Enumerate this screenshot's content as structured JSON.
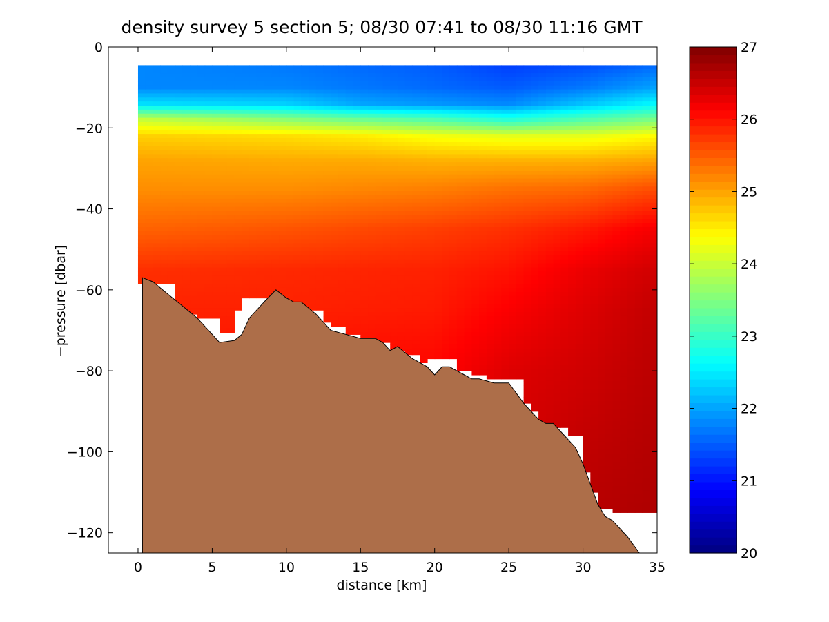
{
  "chart_data": {
    "type": "heatmap",
    "title": "density survey 5 section 5; 08/30 07:41 to 08/30 11:16 GMT",
    "xlabel": "distance [km]",
    "ylabel": "−pressure [dbar]",
    "xlim": [
      -2,
      35
    ],
    "ylim": [
      -125,
      0
    ],
    "x_ticks": [
      0,
      5,
      10,
      15,
      20,
      25,
      30,
      35
    ],
    "x_tick_labels": [
      "0",
      "5",
      "10",
      "15",
      "20",
      "25",
      "30",
      "35"
    ],
    "y_ticks": [
      0,
      -20,
      -40,
      -60,
      -80,
      -100,
      -120
    ],
    "y_tick_labels": [
      "0",
      "−20",
      "−40",
      "−60",
      "−80",
      "−100",
      "−120"
    ],
    "colorbar": {
      "colormap": "jet",
      "clim": [
        20,
        27
      ],
      "ticks": [
        20,
        21,
        22,
        23,
        24,
        25,
        26,
        27
      ],
      "tick_labels": [
        "20",
        "21",
        "22",
        "23",
        "24",
        "25",
        "26",
        "27"
      ]
    },
    "data_x_range": [
      0,
      35
    ],
    "surface_pressure": -4.5,
    "sounding_bottom_pressure": [
      [
        0,
        -58.5
      ],
      [
        2.5,
        -64
      ],
      [
        3,
        -66
      ],
      [
        4,
        -67
      ],
      [
        5.5,
        -70.5
      ],
      [
        6.5,
        -70.5
      ],
      [
        6.5,
        -65
      ],
      [
        7,
        -62
      ],
      [
        10,
        -62
      ],
      [
        10,
        -63
      ],
      [
        11,
        -63
      ],
      [
        11,
        -65
      ],
      [
        12.5,
        -68
      ],
      [
        13,
        -69
      ],
      [
        14,
        -71
      ],
      [
        15,
        -72
      ],
      [
        15.5,
        -72
      ],
      [
        16,
        -73
      ],
      [
        17,
        -73
      ],
      [
        17,
        -75
      ],
      [
        18,
        -76
      ],
      [
        19,
        -78
      ],
      [
        19.5,
        -78
      ],
      [
        19.5,
        -77
      ],
      [
        21.5,
        -77
      ],
      [
        21.5,
        -80
      ],
      [
        22.5,
        -81
      ],
      [
        23.5,
        -82
      ],
      [
        25,
        -82
      ],
      [
        26,
        -88
      ],
      [
        26.5,
        -90
      ],
      [
        27,
        -90
      ],
      [
        27,
        -93
      ],
      [
        28,
        -94
      ],
      [
        29,
        -96
      ],
      [
        30,
        -99
      ],
      [
        30,
        -105
      ],
      [
        30.5,
        -110
      ],
      [
        31,
        -114
      ],
      [
        32,
        -115
      ],
      [
        33,
        -115
      ],
      [
        35,
        -115
      ]
    ],
    "density_levels": [
      {
        "depth": -4.5,
        "values": [
          [
            0,
            21.8
          ],
          [
            10,
            21.7
          ],
          [
            20,
            21.5
          ],
          [
            25,
            21.3
          ],
          [
            30,
            21.4
          ],
          [
            35,
            21.6
          ]
        ]
      },
      {
        "depth": -10,
        "values": [
          [
            0,
            21.8
          ],
          [
            10,
            21.8
          ],
          [
            15,
            21.7
          ],
          [
            20,
            21.6
          ],
          [
            25,
            21.5
          ],
          [
            30,
            21.7
          ],
          [
            35,
            22.0
          ]
        ]
      },
      {
        "depth": -14,
        "values": [
          [
            0,
            22.4
          ],
          [
            10,
            22.3
          ],
          [
            15,
            22.0
          ],
          [
            20,
            21.9
          ],
          [
            25,
            21.8
          ],
          [
            30,
            22.2
          ],
          [
            35,
            22.6
          ]
        ]
      },
      {
        "depth": -18,
        "values": [
          [
            0,
            24.0
          ],
          [
            10,
            23.6
          ],
          [
            15,
            23.4
          ],
          [
            20,
            23.2
          ],
          [
            25,
            22.9
          ],
          [
            30,
            23.2
          ],
          [
            35,
            23.5
          ]
        ]
      },
      {
        "depth": -22,
        "values": [
          [
            0,
            24.7
          ],
          [
            10,
            24.6
          ],
          [
            15,
            24.5
          ],
          [
            20,
            24.3
          ],
          [
            25,
            24.2
          ],
          [
            30,
            24.2
          ],
          [
            35,
            24.4
          ]
        ]
      },
      {
        "depth": -28,
        "values": [
          [
            0,
            25.0
          ],
          [
            10,
            24.95
          ],
          [
            15,
            24.95
          ],
          [
            20,
            24.9
          ],
          [
            25,
            24.9
          ],
          [
            30,
            24.9
          ],
          [
            35,
            25.0
          ]
        ]
      },
      {
        "depth": -35,
        "values": [
          [
            0,
            25.15
          ],
          [
            10,
            25.15
          ],
          [
            20,
            25.25
          ],
          [
            25,
            25.35
          ],
          [
            30,
            25.4
          ],
          [
            35,
            25.6
          ]
        ]
      },
      {
        "depth": -45,
        "values": [
          [
            0,
            25.45
          ],
          [
            10,
            25.55
          ],
          [
            20,
            25.7
          ],
          [
            25,
            25.8
          ],
          [
            30,
            25.95
          ],
          [
            35,
            26.2
          ]
        ]
      },
      {
        "depth": -55,
        "values": [
          [
            0,
            25.8
          ],
          [
            10,
            25.85
          ],
          [
            20,
            25.9
          ],
          [
            25,
            26.0
          ],
          [
            30,
            26.25
          ],
          [
            35,
            26.45
          ]
        ]
      },
      {
        "depth": -65,
        "values": [
          [
            0,
            25.9
          ],
          [
            10,
            25.9
          ],
          [
            20,
            25.95
          ],
          [
            25,
            26.15
          ],
          [
            30,
            26.35
          ],
          [
            35,
            26.55
          ]
        ]
      },
      {
        "depth": -80,
        "values": [
          [
            0,
            26.0
          ],
          [
            20,
            26.1
          ],
          [
            25,
            26.35
          ],
          [
            30,
            26.45
          ],
          [
            35,
            26.6
          ]
        ]
      },
      {
        "depth": -100,
        "values": [
          [
            0,
            26.2
          ],
          [
            25,
            26.4
          ],
          [
            30,
            26.55
          ],
          [
            35,
            26.65
          ]
        ]
      },
      {
        "depth": -125,
        "values": [
          [
            0,
            26.3
          ],
          [
            30,
            26.65
          ],
          [
            35,
            26.7
          ]
        ]
      }
    ],
    "bathymetry_color": "#ad6e49",
    "bathymetry": [
      [
        0.3,
        -125
      ],
      [
        0.3,
        -57
      ],
      [
        1,
        -58
      ],
      [
        2,
        -61
      ],
      [
        3,
        -64
      ],
      [
        4,
        -67
      ],
      [
        5,
        -71
      ],
      [
        5.5,
        -73
      ],
      [
        6.5,
        -72.5
      ],
      [
        7,
        -71
      ],
      [
        7.5,
        -67
      ],
      [
        8.5,
        -63
      ],
      [
        9.3,
        -60
      ],
      [
        10,
        -62
      ],
      [
        10.5,
        -63
      ],
      [
        11,
        -63
      ],
      [
        12,
        -66
      ],
      [
        12.5,
        -68
      ],
      [
        13,
        -70
      ],
      [
        14,
        -71
      ],
      [
        15,
        -72
      ],
      [
        16,
        -72
      ],
      [
        16.5,
        -73
      ],
      [
        17,
        -75
      ],
      [
        17.5,
        -74
      ],
      [
        18.5,
        -77
      ],
      [
        19.5,
        -79
      ],
      [
        20,
        -81
      ],
      [
        20.5,
        -79
      ],
      [
        21,
        -79
      ],
      [
        22,
        -81
      ],
      [
        22.5,
        -82
      ],
      [
        23,
        -82
      ],
      [
        24,
        -83
      ],
      [
        25,
        -83
      ],
      [
        26,
        -88
      ],
      [
        27,
        -92
      ],
      [
        27.5,
        -93
      ],
      [
        28,
        -93
      ],
      [
        29,
        -97
      ],
      [
        29.5,
        -99
      ],
      [
        30,
        -103
      ],
      [
        30.5,
        -108
      ],
      [
        31,
        -113
      ],
      [
        31.5,
        -116
      ],
      [
        32,
        -117
      ],
      [
        33,
        -121
      ],
      [
        33.8,
        -125
      ]
    ]
  }
}
